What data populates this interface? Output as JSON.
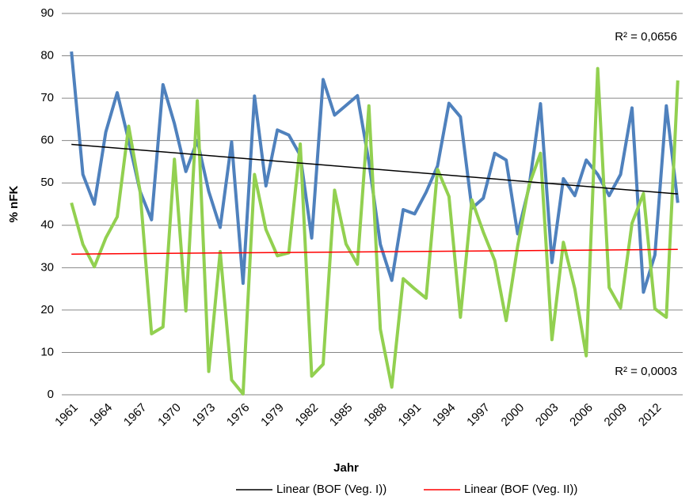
{
  "chart_data": {
    "type": "line",
    "x_label": "Jahr",
    "y_label": "% nFK",
    "categories": [
      "1961",
      null,
      null,
      "1964",
      null,
      null,
      "1967",
      null,
      null,
      "1970",
      null,
      null,
      "1973",
      null,
      null,
      "1976",
      null,
      null,
      "1979",
      null,
      null,
      "1982",
      null,
      null,
      "1985",
      null,
      null,
      "1988",
      null,
      null,
      "1991",
      null,
      null,
      "1994",
      null,
      null,
      "1997",
      null,
      null,
      "2000",
      null,
      null,
      "2003",
      null,
      null,
      "2006",
      null,
      null,
      "2009",
      null,
      null,
      "2012",
      null,
      null
    ],
    "ylim": [
      0,
      90
    ],
    "yticks": [
      0,
      10,
      20,
      30,
      40,
      50,
      60,
      70,
      80,
      90
    ],
    "grid": true,
    "series": [
      {
        "color": "#4f81bd",
        "values": [
          81,
          52,
          45,
          62,
          71.3,
          60,
          48,
          41.3,
          73.2,
          64,
          52.7,
          60,
          48,
          39.5,
          59.7,
          26.3,
          70.5,
          49.3,
          62.5,
          61.3,
          56.5,
          37,
          74.4,
          66,
          68.3,
          70.6,
          55,
          35.5,
          27,
          43.7,
          42.7,
          47.8,
          54,
          68.8,
          65.6,
          44,
          46.4,
          57,
          55.4,
          38,
          49,
          68.7,
          31.2,
          51,
          47,
          55.4,
          52,
          47,
          52,
          67.7,
          24.2,
          33,
          68.2,
          45.3
        ]
      },
      {
        "color": "#92d050",
        "values": [
          45.3,
          35.5,
          30.2,
          37,
          42,
          63.4,
          48,
          14.4,
          16,
          55.6,
          19.8,
          69.4,
          5.5,
          33.8,
          3.5,
          0.2,
          52,
          39,
          32.8,
          33.5,
          59.2,
          4.4,
          7.2,
          48.3,
          35.6,
          30.8,
          68.2,
          15.5,
          1.8,
          27.4,
          25,
          22.8,
          53.2,
          46.8,
          18.3,
          46,
          38.4,
          31.7,
          17.5,
          35,
          49.5,
          57,
          13,
          36,
          25,
          9.2,
          77,
          25.3,
          20.5,
          40.5,
          47.5,
          20.3,
          18.3,
          74.2
        ]
      }
    ],
    "trendlines": [
      {
        "name": "Linear (BOF (Veg. I))",
        "color": "#000000",
        "values": [
          59.1,
          47.4
        ],
        "r2_label": "R² = 0,0656"
      },
      {
        "name": "Linear (BOF (Veg. II))",
        "color": "#ff0000",
        "values": [
          33.2,
          34.3
        ],
        "r2_label": "R² = 0,0003"
      }
    ]
  }
}
